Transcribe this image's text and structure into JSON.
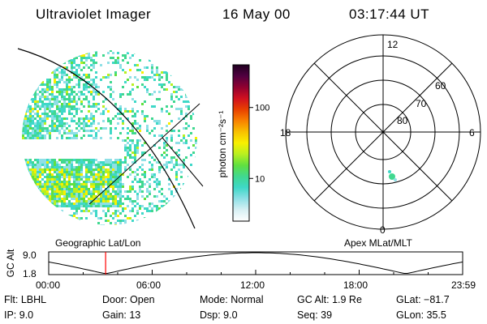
{
  "header": {
    "title": "Ultraviolet Imager",
    "date": "16 May 00",
    "time": "03:17:44 UT"
  },
  "colorbar": {
    "label": "photon cm⁻²s⁻¹",
    "ticks": [
      "100",
      "10"
    ],
    "tick_values": [
      100,
      10
    ],
    "range": [
      2.5,
      400
    ],
    "scale": "log",
    "colors": [
      "#ffffff",
      "#d8f0f4",
      "#8fe0e6",
      "#3fd8c8",
      "#40d890",
      "#60e040",
      "#b8f020",
      "#f8f000",
      "#f8c000",
      "#f88000",
      "#e84000",
      "#d01020",
      "#900030",
      "#500040",
      "#200020"
    ]
  },
  "polar_plot": {
    "mlt_labels": [
      "12",
      "18",
      "6",
      "0"
    ],
    "lat_labels": [
      "60",
      "70",
      "80"
    ],
    "lat_values": [
      60,
      70,
      80
    ],
    "spot_color": "#40d890"
  },
  "altitude_plot": {
    "left_title": "Geographic Lat/Lon",
    "right_title": "Apex MLat/MLT",
    "ylabel": "GC Alt",
    "y_ticks": [
      "9.0",
      "1.8"
    ],
    "x_ticks": [
      "00:00",
      "06:00",
      "12:00",
      "18:00",
      "23:59"
    ],
    "current_time_marker_color": "#ff0000",
    "current_time_hours": 3.3
  },
  "footer": {
    "row1": {
      "flt": "Flt: LBHL",
      "door": "Door: Open",
      "mode": "Mode: Normal",
      "gcalt": "GC Alt: 1.9 Re",
      "glat": "GLat: −81.7"
    },
    "row2": {
      "ip": "IP:  9.0",
      "gain": "Gain: 13",
      "dsp": "Dsp:     9.0",
      "seq": "Seq: 39",
      "glon": "GLon:  35.5"
    }
  }
}
